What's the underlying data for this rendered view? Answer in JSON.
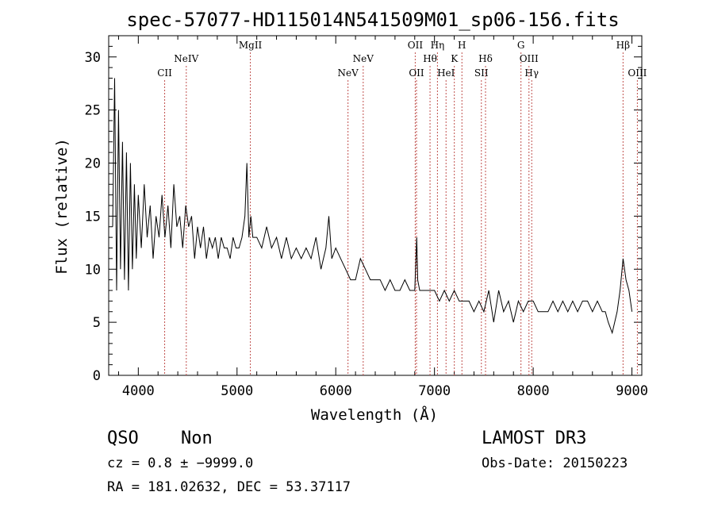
{
  "chart_data": {
    "type": "line",
    "title": "spec-57077-HD115014N541509M01_sp06-156.fits",
    "xlabel": "Wavelength (Å)",
    "ylabel": "Flux (relative)",
    "xlim": [
      3700,
      9100
    ],
    "ylim": [
      0,
      32
    ],
    "xticks": [
      4000,
      5000,
      6000,
      7000,
      8000,
      9000
    ],
    "yticks": [
      0,
      5,
      10,
      15,
      20,
      25,
      30
    ],
    "grid": false,
    "line_color": "#000000",
    "marker_color": "#c0504d",
    "series": [
      {
        "x": [
          3740,
          3760,
          3780,
          3800,
          3820,
          3840,
          3860,
          3880,
          3900,
          3920,
          3940,
          3960,
          3980,
          4000,
          4030,
          4060,
          4090,
          4120,
          4150,
          4180,
          4210,
          4240,
          4270,
          4300,
          4330,
          4360,
          4390,
          4420,
          4450,
          4480,
          4510,
          4540,
          4570,
          4600,
          4630,
          4660,
          4690,
          4720,
          4750,
          4780,
          4810,
          4840,
          4870,
          4900,
          4930,
          4960,
          4990,
          5020,
          5050,
          5080,
          5100,
          5120,
          5140,
          5160,
          5200,
          5250,
          5300,
          5350,
          5400,
          5450,
          5500,
          5550,
          5600,
          5650,
          5700,
          5750,
          5800,
          5850,
          5900,
          5930,
          5960,
          6000,
          6050,
          6100,
          6150,
          6200,
          6250,
          6300,
          6350,
          6400,
          6450,
          6500,
          6550,
          6600,
          6650,
          6700,
          6750,
          6800,
          6820,
          6830,
          6850,
          6900,
          6950,
          7000,
          7050,
          7100,
          7150,
          7200,
          7250,
          7300,
          7350,
          7400,
          7450,
          7500,
          7550,
          7600,
          7650,
          7700,
          7750,
          7800,
          7850,
          7900,
          7950,
          8000,
          8050,
          8100,
          8150,
          8200,
          8250,
          8300,
          8350,
          8400,
          8450,
          8500,
          8550,
          8600,
          8650,
          8700,
          8730,
          8760,
          8800,
          8850,
          8880,
          8910,
          8940,
          8970,
          9000
        ],
        "y": [
          14,
          28,
          8,
          25,
          10,
          22,
          9,
          21,
          8,
          20,
          10,
          18,
          11,
          17,
          12,
          18,
          13,
          16,
          11,
          15,
          13,
          17,
          13,
          16,
          12,
          18,
          14,
          15,
          12,
          16,
          14,
          15,
          11,
          14,
          12,
          14,
          11,
          13,
          12,
          13,
          11,
          13,
          12,
          12,
          11,
          13,
          12,
          12,
          13,
          15,
          20,
          13,
          15,
          13,
          13,
          12,
          14,
          12,
          13,
          11,
          13,
          11,
          12,
          11,
          12,
          11,
          13,
          10,
          12,
          15,
          11,
          12,
          11,
          10,
          9,
          9,
          11,
          10,
          9,
          9,
          9,
          8,
          9,
          8,
          8,
          9,
          8,
          8,
          13,
          9,
          8,
          8,
          8,
          8,
          7,
          8,
          7,
          8,
          7,
          7,
          7,
          6,
          7,
          6,
          8,
          5,
          8,
          6,
          7,
          5,
          7,
          6,
          7,
          7,
          6,
          6,
          6,
          7,
          6,
          7,
          6,
          7,
          6,
          7,
          7,
          6,
          7,
          6,
          6,
          5,
          4,
          6,
          8,
          11,
          9,
          8,
          6
        ]
      }
    ],
    "line_labels": [
      {
        "label": "CII",
        "x": 4267,
        "row": "lower"
      },
      {
        "label": "NeIV",
        "x": 4486,
        "row": "middle"
      },
      {
        "label": "MgII",
        "x": 5135,
        "row": "upper"
      },
      {
        "label": "NeV",
        "x": 6124,
        "row": "lower"
      },
      {
        "label": "NeV",
        "x": 6278,
        "row": "middle"
      },
      {
        "label": "OII",
        "x": 6805,
        "row": "upper"
      },
      {
        "label": "OII",
        "x": 6818,
        "row": "lower"
      },
      {
        "label": "Hθ",
        "x": 6955,
        "row": "middle"
      },
      {
        "label": "Hη",
        "x": 7030,
        "row": "upper"
      },
      {
        "label": "HeI",
        "x": 7117,
        "row": "lower"
      },
      {
        "label": "K",
        "x": 7201,
        "row": "middle"
      },
      {
        "label": "H",
        "x": 7278,
        "row": "upper"
      },
      {
        "label": "SII",
        "x": 7475,
        "row": "lower"
      },
      {
        "label": "Hδ",
        "x": 7517,
        "row": "middle"
      },
      {
        "label": "G",
        "x": 7876,
        "row": "upper"
      },
      {
        "label": "OIII",
        "x": 7957,
        "row": "middle"
      },
      {
        "label": "Hγ",
        "x": 7985,
        "row": "lower"
      },
      {
        "label": "Hβ",
        "x": 8910,
        "row": "upper"
      },
      {
        "label": "OIII",
        "x": 9055,
        "row": "lower"
      }
    ]
  },
  "info": {
    "object_class": "QSO",
    "subclass": "Non",
    "survey": "LAMOST DR3",
    "redshift": "cz = 0.8 ± −9999.0",
    "obs_date": "Obs-Date: 20150223",
    "coords": "RA = 181.02632, DEC =  53.37117"
  }
}
